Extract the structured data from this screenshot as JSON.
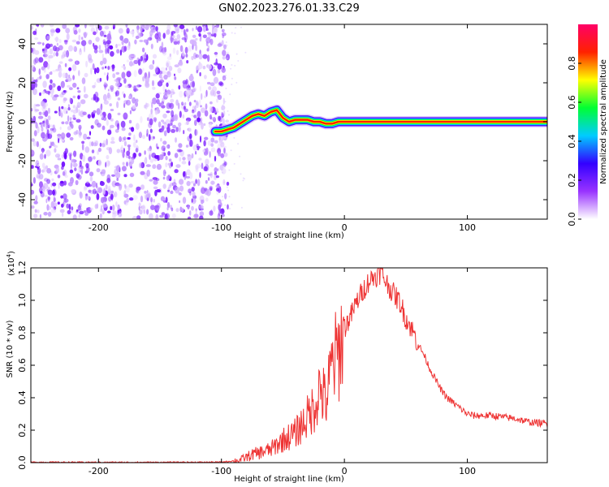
{
  "figure": {
    "title": "GN02.2023.276.01.33.C29"
  },
  "chart_data": [
    {
      "type": "heatmap",
      "title": "GN02.2023.276.01.33.C29",
      "xlabel": "Height of straight line (km)",
      "ylabel": "Frequency (Hz)",
      "xlim": [
        -255,
        165
      ],
      "ylim": [
        -50,
        50
      ],
      "x_ticks": [
        -200,
        -100,
        0,
        100
      ],
      "y_ticks": [
        -40,
        -20,
        0,
        20,
        40
      ],
      "grid": false,
      "noise_region_x": [
        -255,
        -100
      ],
      "ridge": {
        "description_units": "x in km, frequency in Hz",
        "x": [
          -105,
          -100,
          -95,
          -90,
          -85,
          -80,
          -75,
          -70,
          -65,
          -60,
          -55,
          -50,
          -45,
          -40,
          -35,
          -30,
          -25,
          -20,
          -15,
          -10,
          -5,
          0,
          20,
          40,
          60,
          80,
          100,
          120,
          140,
          165
        ],
        "y": [
          -5,
          -5,
          -4,
          -3,
          -1,
          1,
          3,
          4,
          3,
          5,
          6,
          2,
          0,
          1,
          1,
          1,
          0,
          0,
          -1,
          -1,
          0,
          0,
          0,
          0,
          0,
          0,
          0,
          0,
          0,
          0
        ]
      },
      "colorbar": {
        "label": "Normalized spectral amplitude",
        "range": [
          0,
          1
        ],
        "ticks": [
          "0.0",
          "0.2",
          "0.4",
          "0.6",
          "0.8"
        ],
        "colors": [
          "#ffffff",
          "#9933ff",
          "#3300ff",
          "#00ccff",
          "#00ff33",
          "#ffff00",
          "#ff2200",
          "#ff0066"
        ]
      }
    },
    {
      "type": "line",
      "xlabel": "Height of straight line (km)",
      "ylabel": "SNR (10 * v/v)",
      "y_multiplier": "(x10",
      "y_multiplier_exp": "4",
      "y_multiplier_close": ")",
      "xlim": [
        -255,
        165
      ],
      "ylim": [
        0,
        12000
      ],
      "x_ticks": [
        -200,
        -100,
        0,
        100
      ],
      "y_ticks": [
        "0.0",
        "0.2",
        "0.4",
        "0.6",
        "0.8",
        "1.0",
        "1.2"
      ],
      "line_color": "#ee3333",
      "series": [
        {
          "x": [
            -255,
            -200,
            -150,
            -100,
            -85,
            -75,
            -60,
            -50,
            -40,
            -30,
            -25,
            -20,
            -15,
            -10,
            -5,
            0,
            5,
            10,
            15,
            20,
            25,
            30,
            35,
            40,
            45,
            50,
            55,
            60,
            65,
            70,
            75,
            80,
            85,
            90,
            95,
            100,
            105,
            110,
            120,
            130,
            140,
            150,
            165
          ],
          "values": [
            30,
            20,
            20,
            30,
            150,
            500,
            800,
            1400,
            1800,
            2800,
            3400,
            4600,
            3700,
            6000,
            6700,
            8300,
            9000,
            9900,
            10600,
            11200,
            11500,
            11700,
            11000,
            10400,
            9900,
            8900,
            8200,
            7300,
            6600,
            5700,
            5000,
            4300,
            3900,
            3600,
            3300,
            3000,
            2900,
            2900,
            2900,
            2800,
            2700,
            2500,
            2400
          ]
        }
      ]
    }
  ]
}
